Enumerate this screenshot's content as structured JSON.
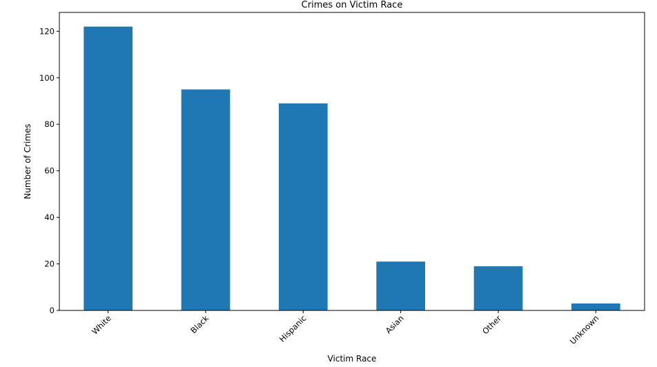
{
  "chart_data": {
    "type": "bar",
    "title": "Crimes on Victim Race",
    "xlabel": "Victim Race",
    "ylabel": "Number of Crimes",
    "categories": [
      "White",
      "Black",
      "Hispanic",
      "Asian",
      "Other",
      "Unknown"
    ],
    "values": [
      122,
      95,
      89,
      21,
      19,
      3
    ],
    "ylim": [
      0,
      128.1
    ],
    "yticks": [
      0,
      20,
      40,
      60,
      80,
      100,
      120
    ],
    "ytick_labels": [
      "0",
      "20",
      "40",
      "60",
      "80",
      "100",
      "120"
    ],
    "grid": false,
    "legend": "none",
    "bar_color": "#1f77b4"
  }
}
